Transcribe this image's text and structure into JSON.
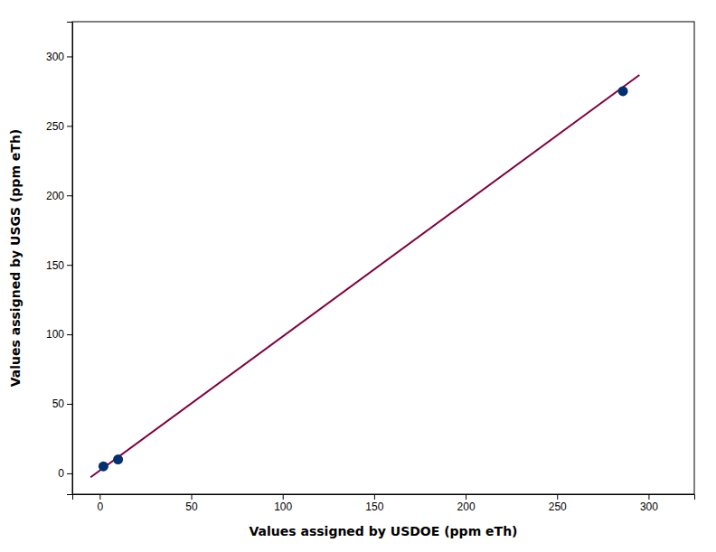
{
  "chart_data": {
    "type": "scatter",
    "xlabel": "Values assigned by USDOE (ppm eTh)",
    "ylabel": "Values assigned by USGS (ppm eTh)",
    "series": [
      {
        "type": "line",
        "color": "#800040",
        "x": [
          -5,
          295
        ],
        "values": [
          -2.825,
          286.675
        ]
      },
      {
        "type": "scatter",
        "color": "#003070",
        "x": [
          2,
          10,
          286
        ],
        "values": [
          5,
          10,
          275
        ]
      }
    ],
    "xlim": [
      -15,
      325
    ],
    "ylim": [
      -15,
      325
    ],
    "xticks": [
      0,
      50,
      100,
      150,
      200,
      250,
      300
    ],
    "yticks": [
      0,
      50,
      100,
      150,
      200,
      250,
      300
    ],
    "grid": false
  }
}
